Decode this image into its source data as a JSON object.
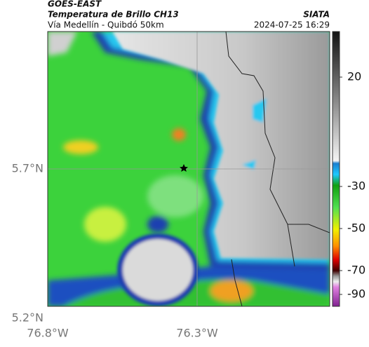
{
  "header": {
    "title": "GOES-EAST",
    "subtitle": "Temperatura de Brillo CH13",
    "route": "Vía Medellín - Quibdó 50km",
    "source": "SIATA",
    "timestamp": "2024-07-25 16:29"
  },
  "map": {
    "lat_labels": [
      "5.7°N",
      "5.2°N"
    ],
    "lon_labels": [
      "76.8°W",
      "76.3°W"
    ],
    "colorbar_ticks": [
      20,
      -30,
      -50,
      -70,
      -90
    ]
  }
}
